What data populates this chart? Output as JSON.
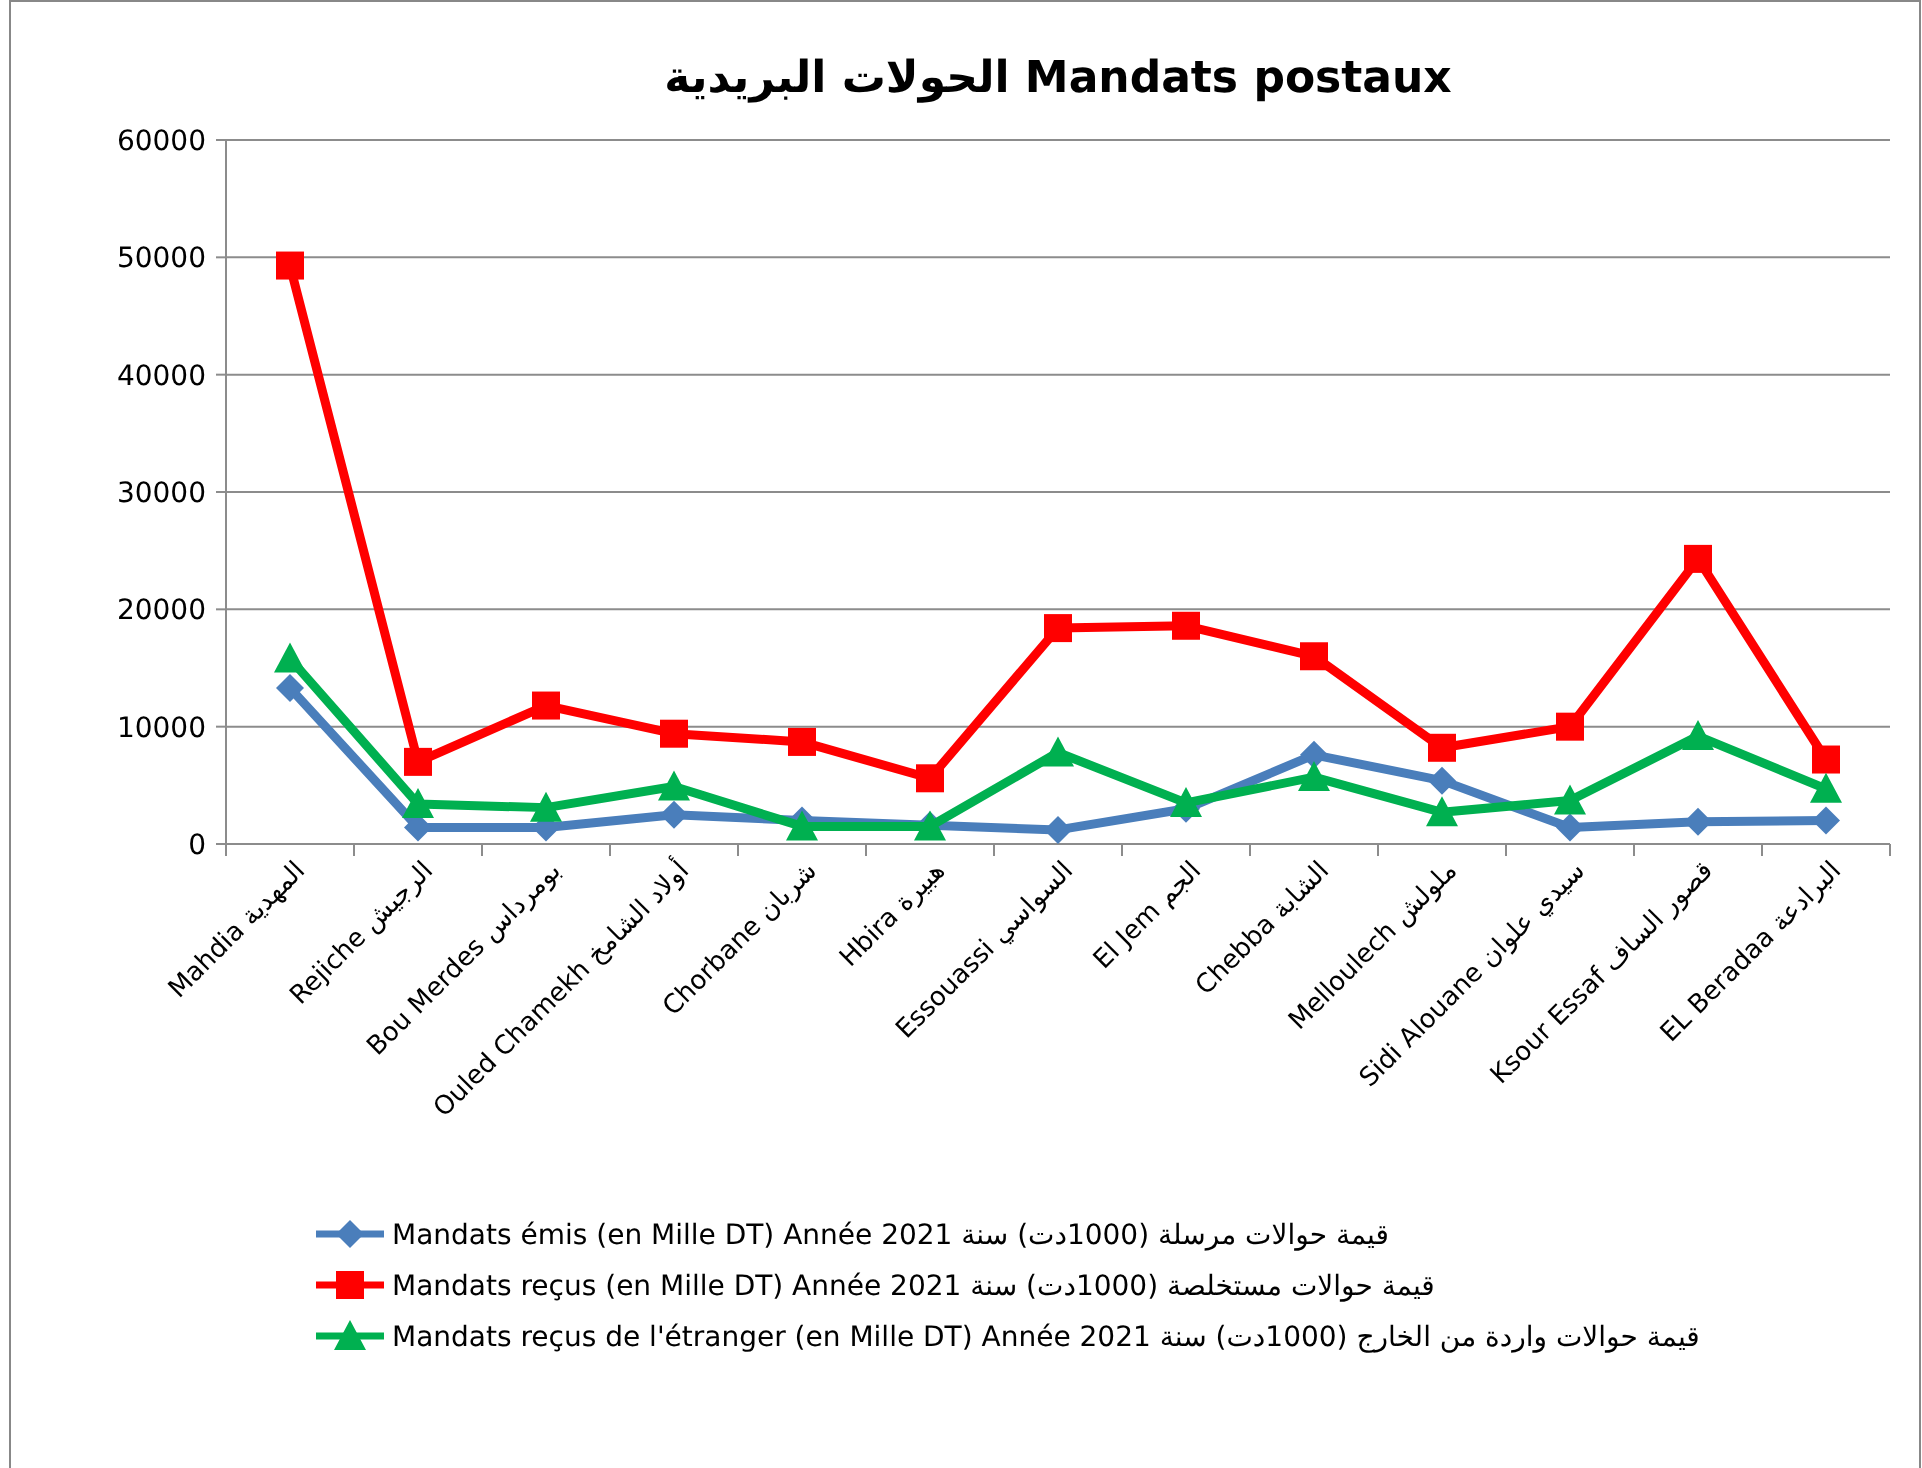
{
  "chart_data": {
    "type": "line",
    "title": "الحولات البريدية  Mandats postaux",
    "categories": [
      "Mahdia  المهدية",
      "Rejiche   الرجيش",
      "Bou Merdes  بومرداس",
      "Ouled Chamekh  أولاد الشامخ",
      "Chorbane   شربان",
      "Hbira  هبيرة",
      "Essouassi  السواسي",
      "El Jem  الجم",
      "Chebba  الشابة",
      "Melloulech  ملولش",
      "Sidi Alouane  سيدي علوان",
      "Ksour Essaf  قصور الساف",
      "EL Beradaa  البرادعة"
    ],
    "series": [
      {
        "name": "Mandats émis (en Mille DT) Année 2021 قيمة حوالات مرسلة (1000دت) سنة",
        "color": "#4a7ebb",
        "marker": "diamond",
        "values": [
          13300,
          1400,
          1400,
          2500,
          2000,
          1600,
          1200,
          3000,
          7600,
          5400,
          1400,
          1900,
          2000
        ]
      },
      {
        "name": "Mandats reçus  (en Mille DT) Année 2021 قيمة حوالات مستخلصة (1000دت) سنة",
        "color": "#ff0000",
        "marker": "square",
        "values": [
          49300,
          7000,
          11800,
          9400,
          8700,
          5600,
          18400,
          18600,
          16000,
          8200,
          10000,
          24300,
          7200
        ]
      },
      {
        "name": "Mandats reçus de l'étranger  (en Mille DT) Année 2021 قيمة حوالات واردة من الخارج (1000دت) سنة",
        "color": "#00b050",
        "marker": "triangle",
        "values": [
          15800,
          3400,
          3100,
          4900,
          1500,
          1500,
          7800,
          3500,
          5700,
          2700,
          3700,
          9200,
          4700
        ]
      }
    ],
    "ylim": [
      0,
      60000
    ],
    "yticks": [
      0,
      10000,
      20000,
      30000,
      40000,
      50000,
      60000
    ],
    "grid": "y",
    "legend": "bottom"
  }
}
